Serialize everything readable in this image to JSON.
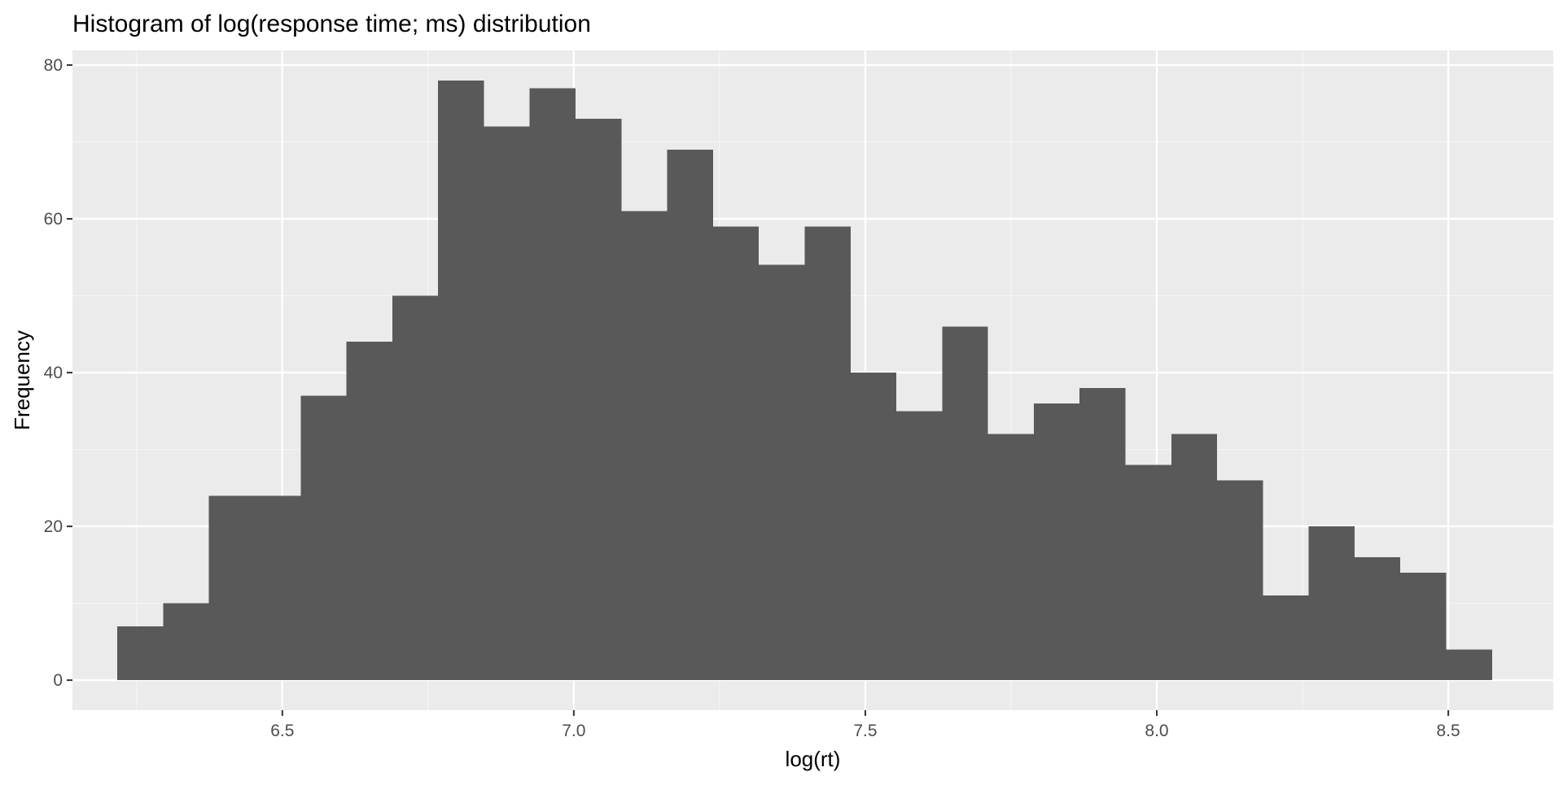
{
  "chart_data": {
    "type": "bar",
    "title": "Histogram of log(response time; ms) distribution",
    "xlabel": "log(rt)",
    "ylabel": "Frequency",
    "bin_width": 0.0786,
    "bin_start": 6.217,
    "values": [
      7,
      10,
      24,
      24,
      37,
      44,
      50,
      78,
      72,
      77,
      73,
      61,
      69,
      59,
      54,
      59,
      40,
      35,
      46,
      32,
      36,
      38,
      28,
      32,
      26,
      11,
      20,
      16,
      14,
      4
    ],
    "xlim": [
      6.14,
      8.68
    ],
    "ylim": [
      -3.9,
      81.9
    ],
    "x_ticks": [
      6.5,
      7.0,
      7.5,
      8.0,
      8.5
    ],
    "x_tick_labels": [
      "6.5",
      "7.0",
      "7.5",
      "8.0",
      "8.5"
    ],
    "y_ticks": [
      0,
      20,
      40,
      60,
      80
    ],
    "y_tick_labels": [
      "0",
      "20",
      "40",
      "60",
      "80"
    ],
    "grid": true,
    "legend": "none",
    "colors": {
      "panel_background": "#EBEBEB",
      "grid_major": "#FFFFFF",
      "grid_minor": "#F5F5F5",
      "bar_fill": "#595959",
      "axis_text": "#4D4D4D",
      "axis_title": "#000000"
    }
  }
}
